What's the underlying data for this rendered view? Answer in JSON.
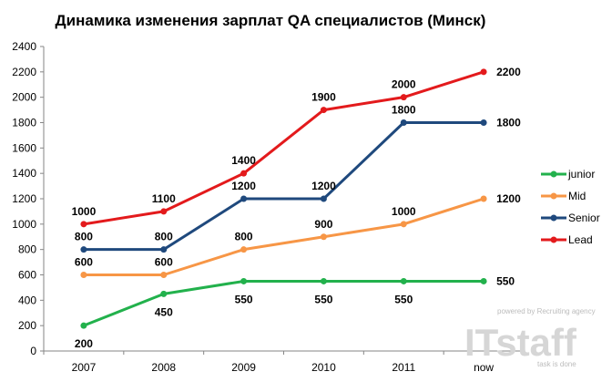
{
  "chart_data": {
    "type": "line",
    "title": "Динамика изменения зарплат QA специалистов (Минск)",
    "categories": [
      "2007",
      "2008",
      "2009",
      "2010",
      "2011",
      "now"
    ],
    "ylim": [
      0,
      2400
    ],
    "yticks": [
      0,
      200,
      400,
      600,
      800,
      1000,
      1200,
      1400,
      1600,
      1800,
      2000,
      2200,
      2400
    ],
    "grid": false,
    "legend_position": "right",
    "series": [
      {
        "name": "junior",
        "color": "#22b14c",
        "values": [
          200,
          450,
          550,
          550,
          550,
          550
        ]
      },
      {
        "name": "Mid",
        "color": "#f79646",
        "values": [
          600,
          600,
          800,
          900,
          1000,
          1200
        ]
      },
      {
        "name": "Senior",
        "color": "#1f497d",
        "values": [
          800,
          800,
          1200,
          1200,
          1800,
          1800
        ]
      },
      {
        "name": "Lead",
        "color": "#e31a1c",
        "values": [
          1000,
          1100,
          1400,
          1900,
          2000,
          2200
        ]
      }
    ]
  },
  "watermark": {
    "tagline": "powered by Recruiting agency",
    "brand": "ITstaff",
    "slogan": "task is done"
  }
}
